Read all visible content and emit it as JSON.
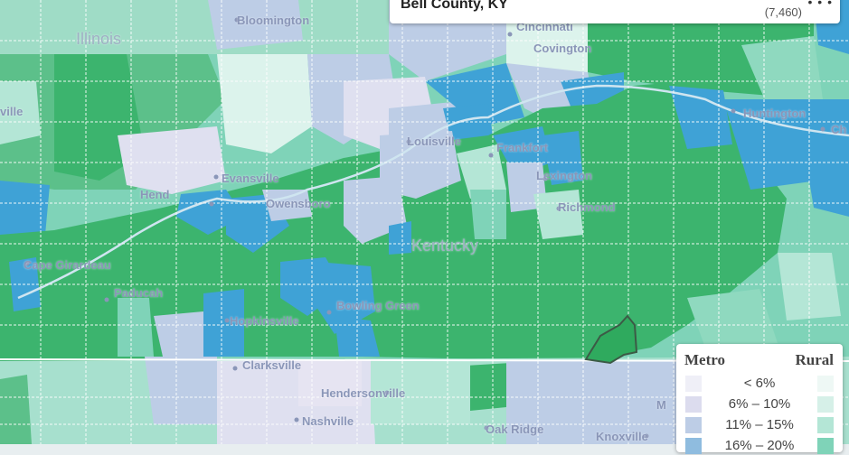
{
  "tooltip": {
    "title": "Bell County, KY",
    "count": "(7,460)",
    "icon_name": "more-icon"
  },
  "map": {
    "state_labels": [
      "Illinois",
      "Kentucky"
    ],
    "city_labels": [
      "Bloomington",
      "Cincinnati",
      "Covington",
      "Louisville",
      "Frankfort",
      "Lexington",
      "Richmond",
      "Evansville",
      "Owensboro",
      "Cape Girardeau",
      "Paducah",
      "Hopkinsville",
      "Bowling Green",
      "Clarksville",
      "Hendersonville",
      "Nashville",
      "Huntington",
      "Oak Ridge",
      "Knoxville"
    ],
    "partial_labels": [
      "ville",
      "Hend",
      "Ch",
      "M"
    ],
    "selected_county": "Bell County, KY",
    "colors": {
      "dark_green": "#3cb46e",
      "mid_teal": "#7fd3b8",
      "light_teal": "#b4e6d6",
      "pale_teal": "#dcf3ec",
      "lavender": "#dfe0f0",
      "periwinkle": "#bdcde6",
      "mid_blue": "#8fbcdf",
      "bright_blue": "#3fa2d6",
      "border": "#ffffff"
    }
  },
  "legend": {
    "metro_header": "Metro",
    "rural_header": "Rural",
    "rows": [
      {
        "label": "< 6%",
        "metro_color": "#efeff7",
        "rural_color": "#eef8f5"
      },
      {
        "label": "6% – 10%",
        "metro_color": "#dcdcee",
        "rural_color": "#d6f0e8"
      },
      {
        "label": "11% – 15%",
        "metro_color": "#bdcde6",
        "rural_color": "#b4e6d6"
      },
      {
        "label": "16% – 20%",
        "metro_color": "#8fbcdf",
        "rural_color": "#7fd3b8"
      }
    ]
  }
}
